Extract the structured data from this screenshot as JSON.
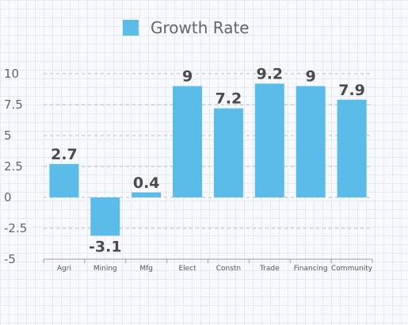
{
  "chart_data": {
    "type": "bar",
    "title": "",
    "xlabel": "",
    "ylabel": "",
    "categories": [
      "Agri",
      "Mining",
      "Mfg",
      "Elect",
      "Constn",
      "Trade",
      "Financing",
      "Community"
    ],
    "series": [
      {
        "name": "Growth Rate",
        "values": [
          2.7,
          -3.1,
          0.4,
          9,
          7.2,
          9.2,
          9,
          7.9
        ]
      }
    ],
    "data_labels": [
      "2.7",
      "-3.1",
      "0.4",
      "9",
      "7.2",
      "9.2",
      "9",
      "7.9"
    ],
    "y_ticks": [
      10,
      7.5,
      5,
      2.5,
      0,
      -2.5,
      -5
    ],
    "y_tick_labels": [
      "10",
      "7.5",
      "5",
      "2.5",
      "0",
      "-2.5",
      "-5"
    ],
    "ylim": [
      -5,
      10
    ],
    "grid": "dashed horizontal",
    "legend_position": "top",
    "bar_color": "#5bbcea"
  }
}
